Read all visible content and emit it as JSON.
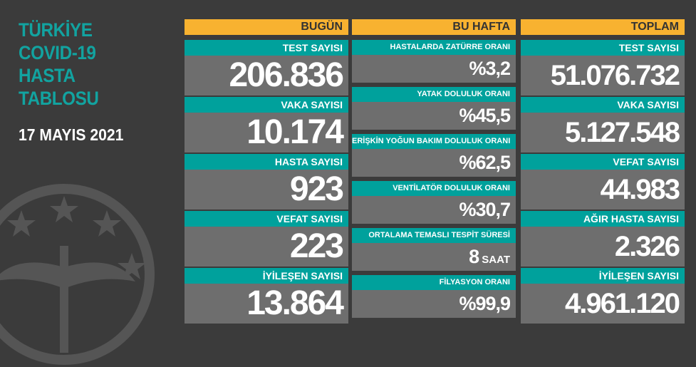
{
  "title": [
    "TÜRKİYE",
    "COVID-19",
    "HASTA",
    "TABLOSU"
  ],
  "date": "17 MAYIS 2021",
  "colors": {
    "teal": "#00a19c",
    "gray": "#6e6e6e",
    "header": "#f8b230",
    "background": "#3b3b3b"
  },
  "today": {
    "header": "BUGÜN",
    "cards": [
      {
        "label": "TEST SAYISI",
        "value": "206.836"
      },
      {
        "label": "VAKA SAYISI",
        "value": "10.174"
      },
      {
        "label": "HASTA SAYISI",
        "value": "923"
      },
      {
        "label": "VEFAT SAYISI",
        "value": "223"
      },
      {
        "label": "İYİLEŞEN SAYISI",
        "value": "13.864"
      }
    ]
  },
  "week": {
    "header": "BU HAFTA",
    "cards": [
      {
        "label": "HASTALARDA ZATÜRRE ORANI",
        "value": "%3,2",
        "unit": ""
      },
      {
        "label": "YATAK DOLULUK ORANI",
        "value": "%45,5",
        "unit": ""
      },
      {
        "label": "ERİŞKİN YOĞUN BAKIM DOLULUK ORANI",
        "value": "%62,5",
        "unit": ""
      },
      {
        "label": "VENTİLATÖR DOLULUK ORANI",
        "value": "%30,7",
        "unit": ""
      },
      {
        "label": "ORTALAMA TEMASLI TESPİT SÜRESİ",
        "value": "8",
        "unit": " SAAT"
      },
      {
        "label": "FİLYASYON ORANI",
        "value": "%99,9",
        "unit": ""
      }
    ]
  },
  "total": {
    "header": "TOPLAM",
    "cards": [
      {
        "label": "TEST SAYISI",
        "value": "51.076.732"
      },
      {
        "label": "VAKA SAYISI",
        "value": "5.127.548"
      },
      {
        "label": "VEFAT SAYISI",
        "value": "44.983"
      },
      {
        "label": "AĞIR HASTA SAYISI",
        "value": "2.326"
      },
      {
        "label": "İYİLEŞEN SAYISI",
        "value": "4.961.120"
      }
    ]
  }
}
